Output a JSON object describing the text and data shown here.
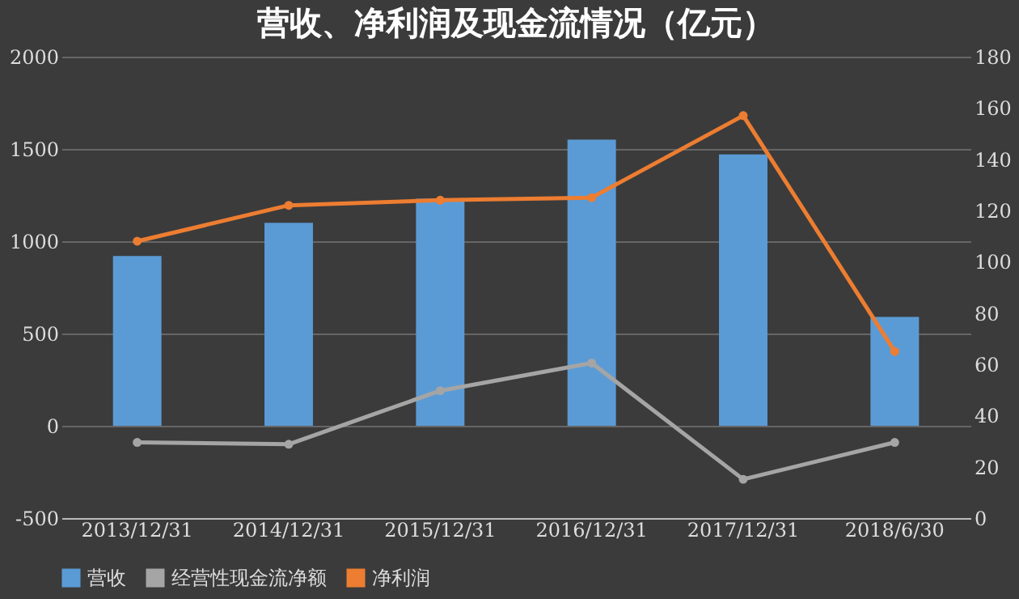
{
  "chart_data": {
    "type": "bar",
    "title": "营收、净利润及现金流情况（亿元）",
    "categories": [
      "2013/12/31",
      "2014/12/31",
      "2015/12/31",
      "2016/12/31",
      "2017/12/31",
      "2018/6/30"
    ],
    "series": [
      {
        "name": "营收",
        "color": "#5b9bd5",
        "values": [
          920,
          1100,
          1230,
          1550,
          1470,
          590
        ]
      },
      {
        "name": "经营性现金流净额",
        "type": "line",
        "color": "#a5a5a5",
        "values": [
          -90,
          -100,
          190,
          340,
          -290,
          -90
        ]
      },
      {
        "name": "净利润",
        "type": "line",
        "axis": "y2",
        "color": "#ed7d31",
        "values": [
          108,
          122,
          124,
          125,
          157,
          65
        ]
      }
    ],
    "ylim": [
      -500,
      2000
    ],
    "yticks": [
      -500,
      0,
      500,
      1000,
      1500,
      2000
    ],
    "y2lim": [
      0,
      180
    ],
    "y2ticks": [
      0,
      20,
      40,
      60,
      80,
      100,
      120,
      140,
      160,
      180
    ],
    "grid": "y",
    "legend": "bottom",
    "marker": "circle"
  }
}
